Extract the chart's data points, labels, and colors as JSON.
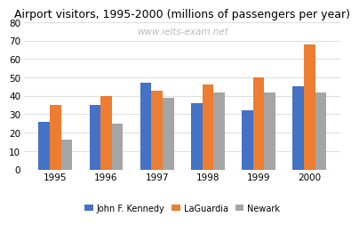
{
  "title": "Airport visitors, 1995-2000 (millions of passengers per year)",
  "watermark": "www.ielts-exam.net",
  "years": [
    1995,
    1996,
    1997,
    1998,
    1999,
    2000
  ],
  "jfk": [
    26,
    35,
    47,
    36,
    32,
    45
  ],
  "laguardia": [
    35,
    40,
    43,
    46,
    50,
    68
  ],
  "newark": [
    16,
    25,
    39,
    42,
    42,
    42
  ],
  "jfk_color": "#4472C4",
  "laguardia_color": "#ED7D31",
  "newark_color": "#A5A5A5",
  "ylim": [
    0,
    80
  ],
  "yticks": [
    0,
    10,
    20,
    30,
    40,
    50,
    60,
    70,
    80
  ],
  "legend_labels": [
    "John F. Kennedy",
    "LaGuardia",
    "Newark"
  ],
  "background_color": "#ffffff",
  "title_fontsize": 9,
  "watermark_color": "#bbbbbb",
  "watermark_fontsize": 7.5
}
